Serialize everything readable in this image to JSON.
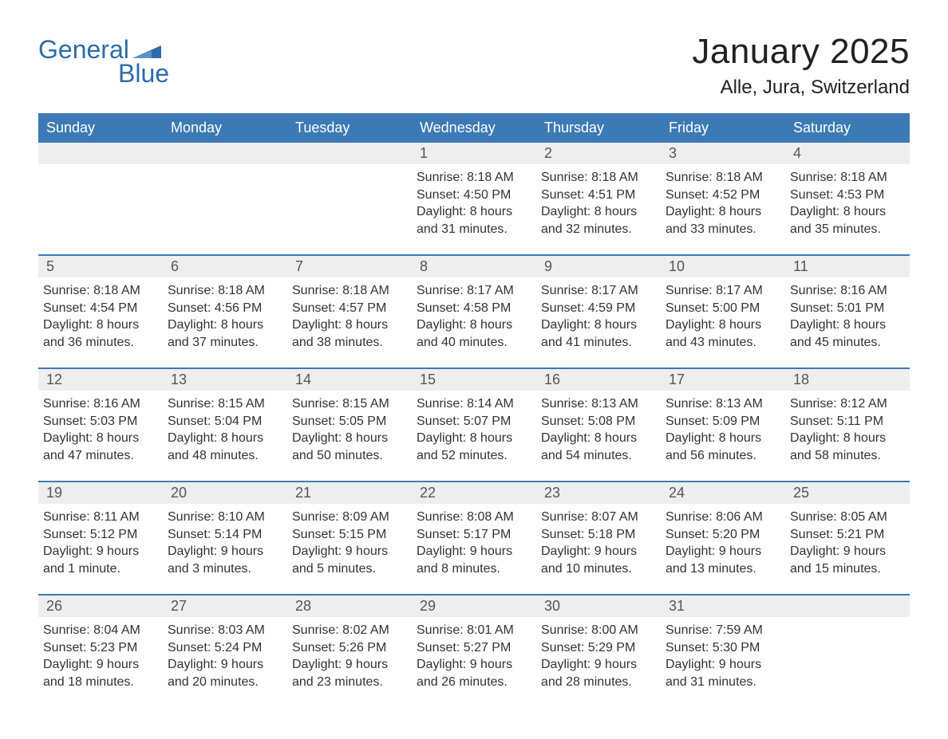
{
  "logo": {
    "text1": "General",
    "text2": "Blue"
  },
  "title": "January 2025",
  "location": "Alle, Jura, Switzerland",
  "colors": {
    "header_bg": "#3c7ab5",
    "header_text": "#ffffff",
    "daynum_bg": "#eeeeee",
    "week_border": "#3c7ab5",
    "body_text": "#333333",
    "logo_color": "#2e6ca9",
    "page_bg": "#ffffff"
  },
  "weekdays": [
    "Sunday",
    "Monday",
    "Tuesday",
    "Wednesday",
    "Thursday",
    "Friday",
    "Saturday"
  ],
  "labels": {
    "sunrise": "Sunrise:",
    "sunset": "Sunset:",
    "daylight": "Daylight:"
  },
  "weeks": [
    [
      {
        "empty": true
      },
      {
        "empty": true
      },
      {
        "empty": true
      },
      {
        "day": "1",
        "sunrise": "8:18 AM",
        "sunset": "4:50 PM",
        "daylight": "8 hours and 31 minutes."
      },
      {
        "day": "2",
        "sunrise": "8:18 AM",
        "sunset": "4:51 PM",
        "daylight": "8 hours and 32 minutes."
      },
      {
        "day": "3",
        "sunrise": "8:18 AM",
        "sunset": "4:52 PM",
        "daylight": "8 hours and 33 minutes."
      },
      {
        "day": "4",
        "sunrise": "8:18 AM",
        "sunset": "4:53 PM",
        "daylight": "8 hours and 35 minutes."
      }
    ],
    [
      {
        "day": "5",
        "sunrise": "8:18 AM",
        "sunset": "4:54 PM",
        "daylight": "8 hours and 36 minutes."
      },
      {
        "day": "6",
        "sunrise": "8:18 AM",
        "sunset": "4:56 PM",
        "daylight": "8 hours and 37 minutes."
      },
      {
        "day": "7",
        "sunrise": "8:18 AM",
        "sunset": "4:57 PM",
        "daylight": "8 hours and 38 minutes."
      },
      {
        "day": "8",
        "sunrise": "8:17 AM",
        "sunset": "4:58 PM",
        "daylight": "8 hours and 40 minutes."
      },
      {
        "day": "9",
        "sunrise": "8:17 AM",
        "sunset": "4:59 PM",
        "daylight": "8 hours and 41 minutes."
      },
      {
        "day": "10",
        "sunrise": "8:17 AM",
        "sunset": "5:00 PM",
        "daylight": "8 hours and 43 minutes."
      },
      {
        "day": "11",
        "sunrise": "8:16 AM",
        "sunset": "5:01 PM",
        "daylight": "8 hours and 45 minutes."
      }
    ],
    [
      {
        "day": "12",
        "sunrise": "8:16 AM",
        "sunset": "5:03 PM",
        "daylight": "8 hours and 47 minutes."
      },
      {
        "day": "13",
        "sunrise": "8:15 AM",
        "sunset": "5:04 PM",
        "daylight": "8 hours and 48 minutes."
      },
      {
        "day": "14",
        "sunrise": "8:15 AM",
        "sunset": "5:05 PM",
        "daylight": "8 hours and 50 minutes."
      },
      {
        "day": "15",
        "sunrise": "8:14 AM",
        "sunset": "5:07 PM",
        "daylight": "8 hours and 52 minutes."
      },
      {
        "day": "16",
        "sunrise": "8:13 AM",
        "sunset": "5:08 PM",
        "daylight": "8 hours and 54 minutes."
      },
      {
        "day": "17",
        "sunrise": "8:13 AM",
        "sunset": "5:09 PM",
        "daylight": "8 hours and 56 minutes."
      },
      {
        "day": "18",
        "sunrise": "8:12 AM",
        "sunset": "5:11 PM",
        "daylight": "8 hours and 58 minutes."
      }
    ],
    [
      {
        "day": "19",
        "sunrise": "8:11 AM",
        "sunset": "5:12 PM",
        "daylight": "9 hours and 1 minute."
      },
      {
        "day": "20",
        "sunrise": "8:10 AM",
        "sunset": "5:14 PM",
        "daylight": "9 hours and 3 minutes."
      },
      {
        "day": "21",
        "sunrise": "8:09 AM",
        "sunset": "5:15 PM",
        "daylight": "9 hours and 5 minutes."
      },
      {
        "day": "22",
        "sunrise": "8:08 AM",
        "sunset": "5:17 PM",
        "daylight": "9 hours and 8 minutes."
      },
      {
        "day": "23",
        "sunrise": "8:07 AM",
        "sunset": "5:18 PM",
        "daylight": "9 hours and 10 minutes."
      },
      {
        "day": "24",
        "sunrise": "8:06 AM",
        "sunset": "5:20 PM",
        "daylight": "9 hours and 13 minutes."
      },
      {
        "day": "25",
        "sunrise": "8:05 AM",
        "sunset": "5:21 PM",
        "daylight": "9 hours and 15 minutes."
      }
    ],
    [
      {
        "day": "26",
        "sunrise": "8:04 AM",
        "sunset": "5:23 PM",
        "daylight": "9 hours and 18 minutes."
      },
      {
        "day": "27",
        "sunrise": "8:03 AM",
        "sunset": "5:24 PM",
        "daylight": "9 hours and 20 minutes."
      },
      {
        "day": "28",
        "sunrise": "8:02 AM",
        "sunset": "5:26 PM",
        "daylight": "9 hours and 23 minutes."
      },
      {
        "day": "29",
        "sunrise": "8:01 AM",
        "sunset": "5:27 PM",
        "daylight": "9 hours and 26 minutes."
      },
      {
        "day": "30",
        "sunrise": "8:00 AM",
        "sunset": "5:29 PM",
        "daylight": "9 hours and 28 minutes."
      },
      {
        "day": "31",
        "sunrise": "7:59 AM",
        "sunset": "5:30 PM",
        "daylight": "9 hours and 31 minutes."
      },
      {
        "empty": true
      }
    ]
  ]
}
